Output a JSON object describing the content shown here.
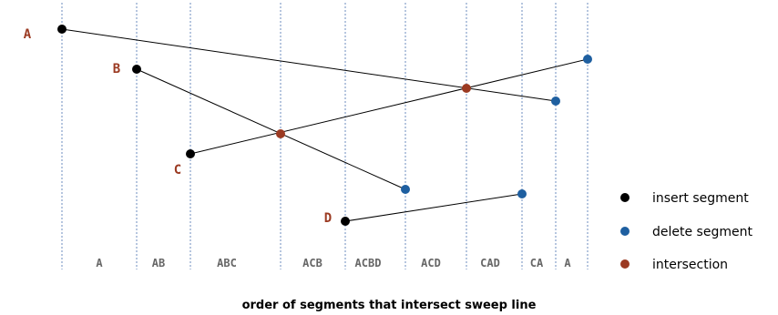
{
  "colors": {
    "sweep_line": "#6c8ebf",
    "segment": "#000000",
    "insert": "#000000",
    "delete": "#1e5fa0",
    "intersection": "#9b3a22",
    "label_accent": "#9b3a22",
    "order_text": "#666666",
    "text": "#000000"
  },
  "segments": [
    {
      "id": "seg-a",
      "label": "A"
    },
    {
      "id": "seg-b",
      "label": "B"
    },
    {
      "id": "seg-c",
      "label": "C"
    },
    {
      "id": "seg-d",
      "label": "D"
    }
  ],
  "orders": [
    "A",
    "AB",
    "ABC",
    "ACB",
    "ACBD",
    "ACD",
    "CAD",
    "CA",
    "A"
  ],
  "legend": {
    "insert": "insert segment",
    "delete": "delete segment",
    "intersection": "intersection"
  },
  "caption": "order of segments that intersect sweep line"
}
